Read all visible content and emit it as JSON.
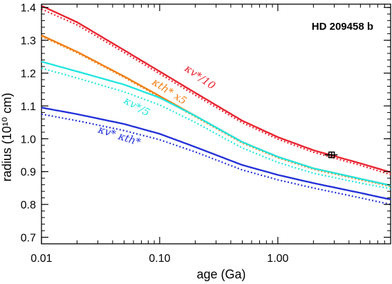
{
  "chart_data": {
    "type": "line",
    "title": "",
    "annotation": "HD 209458 b",
    "xlabel": "age (Ga)",
    "ylabel": "radius (10¹⁰ cm)",
    "xscale": "log",
    "xlim": [
      0.01,
      9.0
    ],
    "ylim": [
      0.68,
      1.41
    ],
    "xticks": [
      0.01,
      0.1,
      1.0
    ],
    "xtick_labels": [
      "0.01",
      "0.10",
      "1.00"
    ],
    "yticks": [
      0.7,
      0.8,
      0.9,
      1.0,
      1.1,
      1.2,
      1.3,
      1.4
    ],
    "ytick_labels": [
      "0.7",
      "0.8",
      "0.9",
      "1.0",
      "1.1",
      "1.2",
      "1.3",
      "1.4"
    ],
    "grid": false,
    "legend": "none",
    "series": [
      {
        "label": "κv*/10",
        "color": "#e8232f",
        "solid": {
          "x": [
            0.01,
            0.02,
            0.05,
            0.1,
            0.2,
            0.5,
            1.0,
            2.0,
            5.0,
            9.0
          ],
          "y": [
            1.405,
            1.355,
            1.27,
            1.205,
            1.14,
            1.055,
            1.005,
            0.965,
            0.925,
            0.898
          ]
        },
        "dotted": {
          "x": [
            0.01,
            0.02,
            0.05,
            0.1,
            0.2,
            0.5,
            1.0,
            2.0,
            5.0,
            9.0
          ],
          "y": [
            1.395,
            1.347,
            1.263,
            1.198,
            1.133,
            1.049,
            0.999,
            0.959,
            0.919,
            0.891
          ]
        }
      },
      {
        "label": "κth* x5",
        "color": "#f07f14",
        "solid": {
          "x": [
            0.01,
            0.02,
            0.05,
            0.1,
            0.2,
            0.5,
            1.0,
            2.0,
            5.0,
            9.0
          ],
          "y": [
            1.315,
            1.265,
            1.19,
            1.13,
            1.07,
            0.99,
            0.945,
            0.91,
            0.878,
            0.858
          ]
        },
        "dotted": {
          "x": [
            0.01,
            0.02,
            0.05,
            0.1,
            0.2,
            0.5,
            1.0,
            2.0,
            5.0,
            9.0
          ],
          "y": [
            1.312,
            1.262,
            1.187,
            1.127,
            1.067,
            0.987,
            0.942,
            0.907,
            0.875,
            0.855
          ]
        }
      },
      {
        "label": "κv*/5",
        "color": "#22e6e0",
        "solid": {
          "x": [
            0.01,
            0.02,
            0.05,
            0.1,
            0.2,
            0.5,
            1.0,
            2.0,
            5.0,
            9.0
          ],
          "y": [
            1.235,
            1.205,
            1.165,
            1.125,
            1.07,
            0.99,
            0.945,
            0.91,
            0.878,
            0.858
          ]
        },
        "dotted": {
          "x": [
            0.01,
            0.02,
            0.05,
            0.1,
            0.2,
            0.5,
            1.0,
            2.0,
            5.0,
            9.0
          ],
          "y": [
            1.215,
            1.185,
            1.143,
            1.103,
            1.05,
            0.972,
            0.928,
            0.895,
            0.865,
            0.848
          ]
        }
      },
      {
        "label": "κv* κth*",
        "color": "#2432d8",
        "solid": {
          "x": [
            0.01,
            0.02,
            0.05,
            0.1,
            0.2,
            0.5,
            1.0,
            2.0,
            5.0,
            9.0
          ],
          "y": [
            1.095,
            1.075,
            1.045,
            1.015,
            0.975,
            0.92,
            0.89,
            0.865,
            0.835,
            0.815
          ]
        },
        "dotted": {
          "x": [
            0.01,
            0.02,
            0.05,
            0.1,
            0.2,
            0.5,
            1.0,
            2.0,
            5.0,
            9.0
          ],
          "y": [
            1.075,
            1.055,
            1.025,
            0.997,
            0.96,
            0.905,
            0.875,
            0.85,
            0.82,
            0.8
          ]
        }
      }
    ],
    "observation": {
      "x": 2.85,
      "y": 0.951,
      "xerr": 0.35,
      "yerr": 0.01,
      "color": "#000000"
    }
  }
}
